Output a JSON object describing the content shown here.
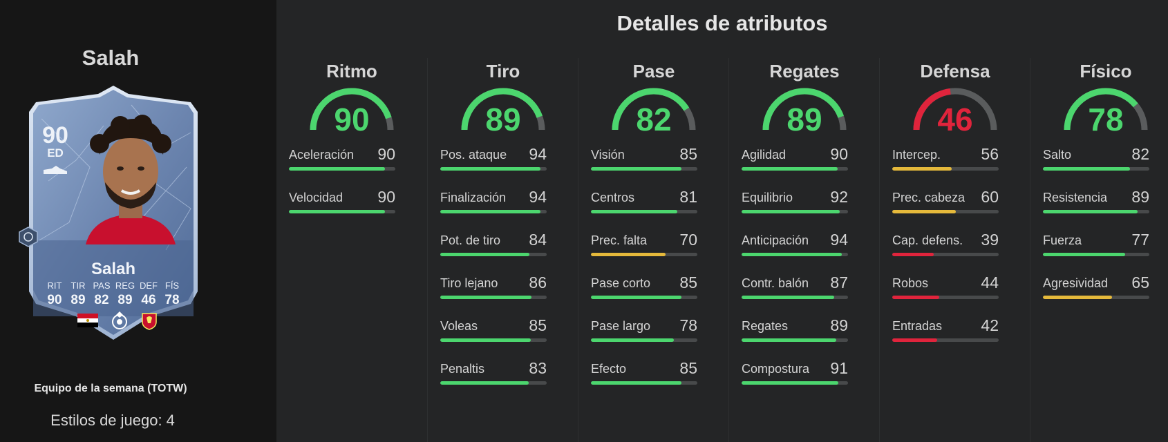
{
  "player": {
    "name": "Salah",
    "card": {
      "rating": "90",
      "position": "ED",
      "name": "Salah",
      "stats": [
        {
          "label": "RIT",
          "value": "90"
        },
        {
          "label": "TIR",
          "value": "89"
        },
        {
          "label": "PAS",
          "value": "82"
        },
        {
          "label": "REG",
          "value": "89"
        },
        {
          "label": "DEF",
          "value": "46"
        },
        {
          "label": "FÍS",
          "value": "78"
        }
      ],
      "icons": [
        "egypt-flag-icon",
        "premier-league-icon",
        "liverpool-crest-icon"
      ]
    },
    "team_label": "Equipo de la semana (TOTW)",
    "playstyles_label": "Estilos de juego:",
    "playstyles_count": "4"
  },
  "colors": {
    "good": "#4cd66e",
    "mid": "#e5b93b",
    "bad": "#e0243c",
    "track": "#484a4b",
    "gauge_track": "#5a5c5d"
  },
  "page_title": "Detalles de atributos",
  "categories": [
    {
      "name": "Ritmo",
      "value": 90,
      "color": "#4cd66e",
      "attributes": [
        {
          "label": "Aceleración",
          "value": 90,
          "color": "#4cd66e"
        },
        {
          "label": "Velocidad",
          "value": 90,
          "color": "#4cd66e"
        }
      ]
    },
    {
      "name": "Tiro",
      "value": 89,
      "color": "#4cd66e",
      "attributes": [
        {
          "label": "Pos. ataque",
          "value": 94,
          "color": "#4cd66e"
        },
        {
          "label": "Finalización",
          "value": 94,
          "color": "#4cd66e"
        },
        {
          "label": "Pot. de tiro",
          "value": 84,
          "color": "#4cd66e"
        },
        {
          "label": "Tiro lejano",
          "value": 86,
          "color": "#4cd66e"
        },
        {
          "label": "Voleas",
          "value": 85,
          "color": "#4cd66e"
        },
        {
          "label": "Penaltis",
          "value": 83,
          "color": "#4cd66e"
        }
      ]
    },
    {
      "name": "Pase",
      "value": 82,
      "color": "#4cd66e",
      "attributes": [
        {
          "label": "Visión",
          "value": 85,
          "color": "#4cd66e"
        },
        {
          "label": "Centros",
          "value": 81,
          "color": "#4cd66e"
        },
        {
          "label": "Prec. falta",
          "value": 70,
          "color": "#e5b93b"
        },
        {
          "label": "Pase corto",
          "value": 85,
          "color": "#4cd66e"
        },
        {
          "label": "Pase largo",
          "value": 78,
          "color": "#4cd66e"
        },
        {
          "label": "Efecto",
          "value": 85,
          "color": "#4cd66e"
        }
      ]
    },
    {
      "name": "Regates",
      "value": 89,
      "color": "#4cd66e",
      "attributes": [
        {
          "label": "Agilidad",
          "value": 90,
          "color": "#4cd66e"
        },
        {
          "label": "Equilibrio",
          "value": 92,
          "color": "#4cd66e"
        },
        {
          "label": "Anticipación",
          "value": 94,
          "color": "#4cd66e"
        },
        {
          "label": "Contr. balón",
          "value": 87,
          "color": "#4cd66e"
        },
        {
          "label": "Regates",
          "value": 89,
          "color": "#4cd66e"
        },
        {
          "label": "Compostura",
          "value": 91,
          "color": "#4cd66e"
        }
      ]
    },
    {
      "name": "Defensa",
      "value": 46,
      "color": "#e0243c",
      "attributes": [
        {
          "label": "Intercep.",
          "value": 56,
          "color": "#e5b93b"
        },
        {
          "label": "Prec. cabeza",
          "value": 60,
          "color": "#e5b93b"
        },
        {
          "label": "Cap. defens.",
          "value": 39,
          "color": "#e0243c"
        },
        {
          "label": "Robos",
          "value": 44,
          "color": "#e0243c"
        },
        {
          "label": "Entradas",
          "value": 42,
          "color": "#e0243c"
        }
      ]
    },
    {
      "name": "Físico",
      "value": 78,
      "color": "#4cd66e",
      "attributes": [
        {
          "label": "Salto",
          "value": 82,
          "color": "#4cd66e"
        },
        {
          "label": "Resistencia",
          "value": 89,
          "color": "#4cd66e"
        },
        {
          "label": "Fuerza",
          "value": 77,
          "color": "#4cd66e"
        },
        {
          "label": "Agresividad",
          "value": 65,
          "color": "#e5b93b"
        }
      ]
    }
  ]
}
